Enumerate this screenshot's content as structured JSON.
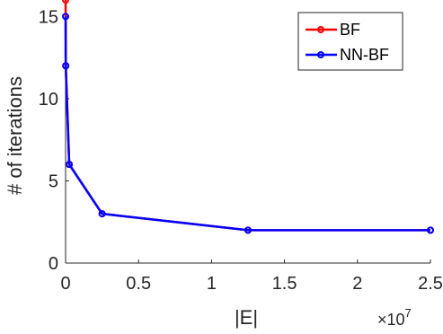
{
  "chart_data": {
    "type": "line",
    "title": "",
    "xlabel": "|E|",
    "ylabel": "# of iterations",
    "x_exponent_label": {
      "base": "×10",
      "power": "7"
    },
    "xlim": [
      0,
      2.5
    ],
    "ylim": [
      0,
      16
    ],
    "xticks": [
      "0",
      "0.5",
      "1",
      "1.5",
      "2",
      "2.5"
    ],
    "yticks": [
      "0",
      "5",
      "10",
      "15"
    ],
    "grid": false,
    "legend_position": "top-right",
    "series": [
      {
        "name": "BF",
        "color": "#ff0000",
        "x": [
          0.0001,
          0.001,
          0.025,
          0.25,
          1.25,
          2.5
        ],
        "y": [
          16,
          12,
          6,
          3,
          2,
          2
        ]
      },
      {
        "name": "NN-BF",
        "color": "#0000ff",
        "x": [
          0.0001,
          0.001,
          0.025,
          0.25,
          1.25,
          2.5
        ],
        "y": [
          15,
          12,
          6,
          3,
          2,
          2
        ]
      }
    ]
  }
}
